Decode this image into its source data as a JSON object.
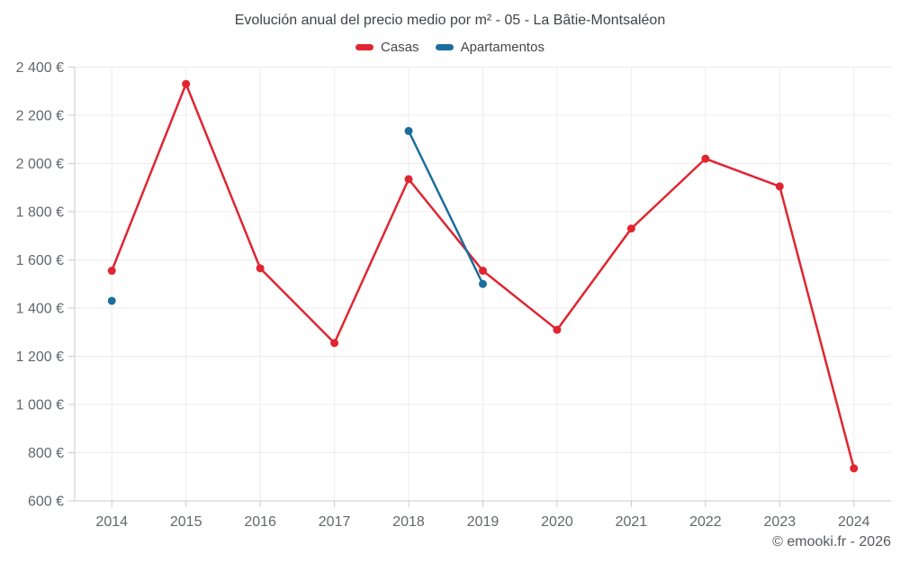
{
  "chart_data": {
    "type": "line",
    "title": "Evolución anual del precio medio por m² - 05 - La Bâtie-Montsaléon",
    "categories": [
      "2014",
      "2015",
      "2016",
      "2017",
      "2018",
      "2019",
      "2020",
      "2021",
      "2022",
      "2023",
      "2024"
    ],
    "series": [
      {
        "name": "Casas",
        "color": "#e02530",
        "values": [
          1555,
          2330,
          1565,
          1255,
          1935,
          1555,
          1310,
          1730,
          2020,
          1905,
          735
        ]
      },
      {
        "name": "Apartamentos",
        "color": "#1b6d9e",
        "values": [
          1430,
          null,
          null,
          null,
          2135,
          1500,
          null,
          null,
          null,
          null,
          null
        ]
      }
    ],
    "ylim": [
      600,
      2400
    ],
    "yticks": [
      600,
      800,
      1000,
      1200,
      1400,
      1600,
      1800,
      2000,
      2200,
      2400
    ],
    "ytick_labels": [
      "600 €",
      "800 €",
      "1 000 €",
      "1 200 €",
      "1 400 €",
      "1 600 €",
      "1 800 €",
      "2 000 €",
      "2 200 €",
      "2 400 €"
    ],
    "grid": true,
    "legend_position": "top",
    "xlabel": "",
    "ylabel": ""
  },
  "footer": {
    "copyright": "© emooki.fr - 2026"
  },
  "colors": {
    "casas": "#e02530",
    "apartamentos": "#1b6d9e",
    "grid": "#ececec",
    "axis": "#c9cbcd",
    "tick_label": "#63676c",
    "title_text": "#3f4347",
    "legend_text": "#44474c",
    "footer_text": "#55595e",
    "background": "#ffffff"
  }
}
